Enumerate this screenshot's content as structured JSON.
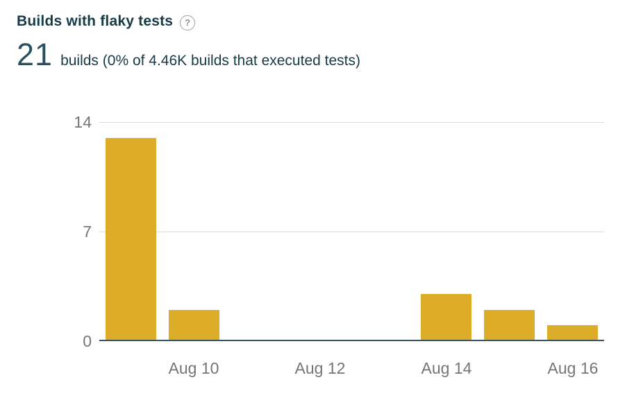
{
  "header": {
    "title": "Builds with flaky tests",
    "help_glyph": "?",
    "metric_value": "21",
    "metric_description": "builds (0% of 4.46K builds that executed tests)"
  },
  "chart_data": {
    "type": "bar",
    "title": "Builds with flaky tests",
    "x": [
      "Aug 9",
      "Aug 10",
      "Aug 11",
      "Aug 12",
      "Aug 13",
      "Aug 14",
      "Aug 15",
      "Aug 16"
    ],
    "values": [
      13,
      2,
      0,
      0,
      0,
      3,
      2,
      1
    ],
    "x_ticks": [
      {
        "i": 1,
        "label": "Aug 10"
      },
      {
        "i": 3,
        "label": "Aug 12"
      },
      {
        "i": 5,
        "label": "Aug 14"
      },
      {
        "i": 7,
        "label": "Aug 16"
      }
    ],
    "y_ticks": [
      0,
      7,
      14
    ],
    "ylim": [
      0,
      14
    ],
    "xlabel": "",
    "ylabel": "",
    "grid": "horizontal",
    "legend": "none",
    "bar_color": "#ddad29"
  },
  "colors": {
    "bar": "#ddad29",
    "heading_text": "#173a47",
    "metric_text": "#29505e",
    "axis_text": "#757575",
    "gridline": "#dcdcde",
    "baseline": "#36535f",
    "background": "#ffffff"
  }
}
